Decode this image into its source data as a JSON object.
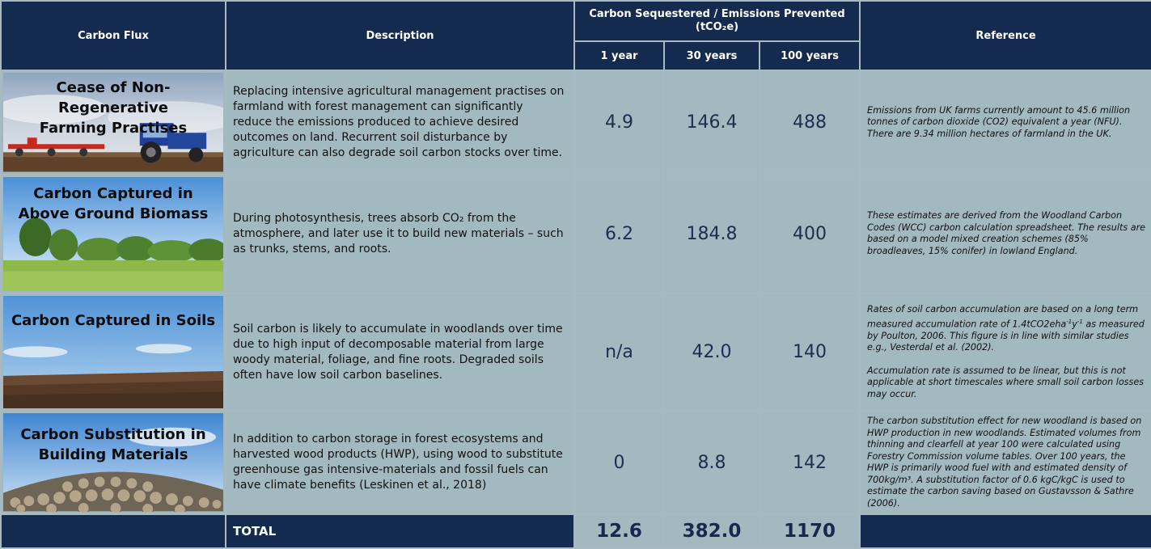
{
  "header": {
    "flux_label": "Carbon Flux",
    "description_label": "Description",
    "sequestered_label": "Carbon Sequestered / Emissions Prevented",
    "sequestered_unit": "(tCO₂e)",
    "years": [
      "1 year",
      "30 years",
      "100 years"
    ],
    "reference_label": "Reference"
  },
  "rows": [
    {
      "title_line1": "Cease of Non-Regenerative",
      "title_line2": "Farming Practises",
      "image_icon": "tractor-field-photo",
      "description": "Replacing intensive agricultural management practises on farmland with forest management can significantly reduce the emissions produced to achieve desired outcomes on land. Recurrent soil disturbance by agriculture can also degrade soil carbon stocks over time.",
      "y1": "4.9",
      "y30": "146.4",
      "y100": "488",
      "reference": "Emissions from UK farms currently amount to 45.6 million tonnes of carbon dioxide (CO2) equivalent a year (NFU). There are 9.34 million hectares of farmland in the UK."
    },
    {
      "title_line1": "Carbon Captured in",
      "title_line2": "Above Ground Biomass",
      "image_icon": "tree-line-photo",
      "description": "During photosynthesis, trees absorb CO₂ from the atmosphere, and later use it to build new materials – such as trunks, stems, and roots.",
      "y1": "6.2",
      "y30": "184.8",
      "y100": "400",
      "reference": "These estimates are derived from the Woodland Carbon Codes (WCC) carbon calculation spreadsheet. The results are based on a model mixed creation schemes (85% broadleaves, 15% conifer) in lowland England."
    },
    {
      "title_line1": "Carbon Captured in Soils",
      "title_line2": "",
      "image_icon": "plowed-soil-photo",
      "description": "Soil carbon is likely to accumulate in woodlands over time due to high input of decomposable material from large woody material, foliage, and fine roots. Degraded soils often have low soil carbon baselines.",
      "y1": "n/a",
      "y30": "42.0",
      "y100": "140",
      "reference_part1": "Rates of soil carbon accumulation are based on a long term measured accumulation rate of 1.4tCO2eha",
      "reference_sup1": "-1",
      "reference_mid": "y",
      "reference_sup2": "-1",
      "reference_part2": " as measured by Poulton, 2006. This figure is in line with similar studies e.g., Vesterdal et al. (2002).",
      "reference_para2": "Accumulation rate is assumed to be linear, but this is not applicable at short timescales where small soil carbon losses may occur."
    },
    {
      "title_line1": "Carbon Substitution in",
      "title_line2": "Building Materials",
      "image_icon": "log-pile-photo",
      "description": "In addition to carbon storage in forest ecosystems and harvested wood products (HWP), using wood to substitute greenhouse gas intensive-materials and fossil fuels can have climate benefits (Leskinen et al., 2018)",
      "y1": "0",
      "y30": "8.8",
      "y100": "142",
      "reference": "The carbon substitution effect for new woodland is based on HWP production in new woodlands. Estimated volumes from thinning and clearfell at year 100 were calculated using Forestry Commission volume tables. Over 100 years, the HWP is primarily wood fuel with and estimated density of 700kg/m³. A substitution factor of 0.6 kgC/kgC is used to estimate the carbon saving based on Gustavsson & Sathre (2006)."
    }
  ],
  "total": {
    "label": "TOTAL",
    "y1": "12.6",
    "y30": "382.0",
    "y100": "1170"
  },
  "colors": {
    "header_navy": "#142a4f",
    "cell_blue_grey": "#a2b9bf",
    "grid_border": "#a9b9c2"
  }
}
